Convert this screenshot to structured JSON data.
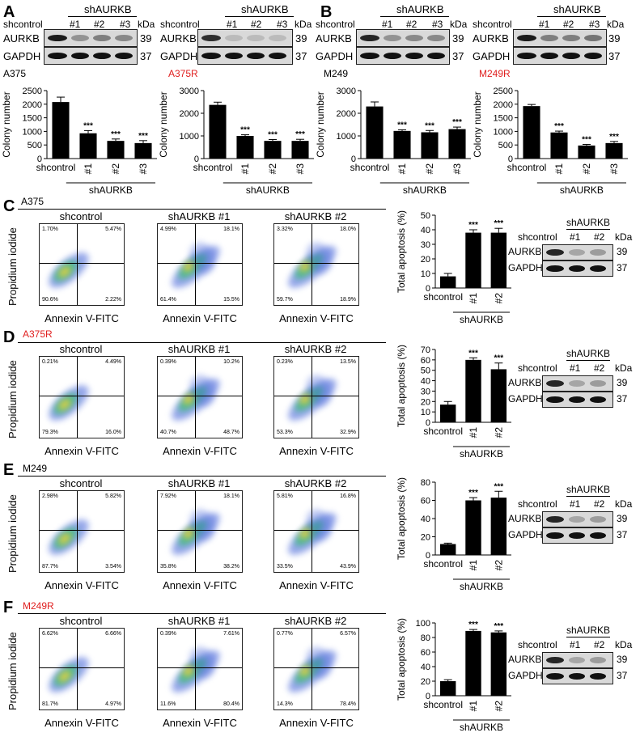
{
  "panels": {
    "A": "A",
    "B": "B",
    "C": "C",
    "D": "D",
    "E": "E",
    "F": "F"
  },
  "blots": {
    "kda": "kDa",
    "shcontrol": "shcontrol",
    "shAURKB": "shAURKB",
    "lanes3": [
      "#1",
      "#2",
      "#3"
    ],
    "lanes2": [
      "#1",
      "#2"
    ],
    "aurkb": "AURKB",
    "gapdh": "GAPDH",
    "mw_aurkb": "39",
    "mw_gapdh": "37"
  },
  "cell_lines": {
    "a375": "A375",
    "a375r": "A375R",
    "m249": "M249",
    "m249r": "M249R"
  },
  "flow": {
    "xlabel": "Annexin V-FITC",
    "ylabel": "Propidium iodide",
    "titles": [
      "shcontrol",
      "shAURKB #1",
      "shAURKB #2"
    ],
    "C": [
      [
        "1.70%",
        "5.47%",
        "90.6%",
        "2.22%"
      ],
      [
        "4.99%",
        "18.1%",
        "61.4%",
        "15.5%"
      ],
      [
        "3.32%",
        "18.0%",
        "59.7%",
        "18.9%"
      ]
    ],
    "D": [
      [
        "0.21%",
        "4.49%",
        "79.3%",
        "16.0%"
      ],
      [
        "0.39%",
        "10.2%",
        "40.7%",
        "48.7%"
      ],
      [
        "0.23%",
        "13.5%",
        "53.3%",
        "32.9%"
      ]
    ],
    "E": [
      [
        "2.98%",
        "5.82%",
        "87.7%",
        "3.54%"
      ],
      [
        "7.92%",
        "18.1%",
        "35.8%",
        "38.2%"
      ],
      [
        "5.81%",
        "16.8%",
        "33.5%",
        "43.9%"
      ]
    ],
    "F": [
      [
        "6.62%",
        "6.66%",
        "81.7%",
        "4.97%"
      ],
      [
        "0.39%",
        "7.61%",
        "11.6%",
        "80.4%"
      ],
      [
        "0.77%",
        "6.57%",
        "14.3%",
        "78.4%"
      ]
    ]
  },
  "chart_data": [
    {
      "type": "bar",
      "id": "A375-colony",
      "title": "A375",
      "ylabel": "Colony number",
      "xlabel": "shAURKB",
      "categories": [
        "shcontrol",
        "#1",
        "#2",
        "#3"
      ],
      "values": [
        2080,
        930,
        650,
        570
      ],
      "errors": [
        180,
        100,
        70,
        90
      ],
      "sig": [
        "",
        "***",
        "***",
        "***"
      ],
      "ylim": [
        0,
        2500
      ],
      "yticks": [
        0,
        500,
        1000,
        1500,
        2000,
        2500
      ]
    },
    {
      "type": "bar",
      "id": "A375R-colony",
      "title": "A375R",
      "ylabel": "Colony number",
      "xlabel": "shAURKB",
      "categories": [
        "shcontrol",
        "#1",
        "#2",
        "#3"
      ],
      "values": [
        2370,
        1000,
        780,
        780
      ],
      "errors": [
        120,
        50,
        60,
        70
      ],
      "sig": [
        "",
        "***",
        "***",
        "***"
      ],
      "ylim": [
        0,
        3000
      ],
      "yticks": [
        0,
        1000,
        2000,
        3000
      ]
    },
    {
      "type": "bar",
      "id": "M249-colony",
      "title": "M249",
      "ylabel": "Colony number",
      "xlabel": "shAURKB",
      "categories": [
        "shcontrol",
        "#1",
        "#2",
        "#3"
      ],
      "values": [
        2300,
        1220,
        1160,
        1300
      ],
      "errors": [
        200,
        50,
        80,
        90
      ],
      "sig": [
        "",
        "***",
        "***",
        "***"
      ],
      "ylim": [
        0,
        3000
      ],
      "yticks": [
        0,
        1000,
        2000,
        3000
      ]
    },
    {
      "type": "bar",
      "id": "M249R-colony",
      "title": "M249R",
      "ylabel": "Colony number",
      "xlabel": "shAURKB",
      "categories": [
        "shcontrol",
        "#1",
        "#2",
        "#3"
      ],
      "values": [
        1930,
        960,
        480,
        570
      ],
      "errors": [
        60,
        50,
        40,
        60
      ],
      "sig": [
        "",
        "***",
        "***",
        "***"
      ],
      "ylim": [
        0,
        2500
      ],
      "yticks": [
        0,
        500,
        1000,
        1500,
        2000,
        2500
      ]
    },
    {
      "type": "bar",
      "id": "C-apoptosis",
      "ylabel": "Total apoptosis (%)",
      "xlabel": "shAURKB",
      "categories": [
        "shcontrol",
        "#1",
        "#2"
      ],
      "values": [
        8,
        38,
        38
      ],
      "errors": [
        2,
        2,
        3
      ],
      "sig": [
        "",
        "***",
        "***"
      ],
      "ylim": [
        0,
        50
      ],
      "yticks": [
        0,
        10,
        20,
        30,
        40,
        50
      ]
    },
    {
      "type": "bar",
      "id": "D-apoptosis",
      "ylabel": "Total apoptosis (%)",
      "xlabel": "shAURKB",
      "categories": [
        "shcontrol",
        "#1",
        "#2"
      ],
      "values": [
        17,
        60,
        51
      ],
      "errors": [
        3,
        2,
        6
      ],
      "sig": [
        "",
        "***",
        "***"
      ],
      "ylim": [
        0,
        70
      ],
      "yticks": [
        0,
        10,
        20,
        30,
        40,
        50,
        60,
        70
      ]
    },
    {
      "type": "bar",
      "id": "E-apoptosis",
      "ylabel": "Total apoptosis (%)",
      "xlabel": "shAURKB",
      "categories": [
        "shcontrol",
        "#1",
        "#2"
      ],
      "values": [
        12,
        60,
        63
      ],
      "errors": [
        1,
        3,
        7
      ],
      "sig": [
        "",
        "***",
        "***"
      ],
      "ylim": [
        0,
        80
      ],
      "yticks": [
        0,
        20,
        40,
        60,
        80
      ]
    },
    {
      "type": "bar",
      "id": "F-apoptosis",
      "ylabel": "Total apoptosis (%)",
      "xlabel": "shAURKB",
      "categories": [
        "shcontrol",
        "#1",
        "#2"
      ],
      "values": [
        20,
        89,
        87
      ],
      "errors": [
        2,
        2,
        2
      ],
      "sig": [
        "",
        "***",
        "***"
      ],
      "ylim": [
        0,
        100
      ],
      "yticks": [
        0,
        20,
        40,
        60,
        80,
        100
      ]
    }
  ]
}
